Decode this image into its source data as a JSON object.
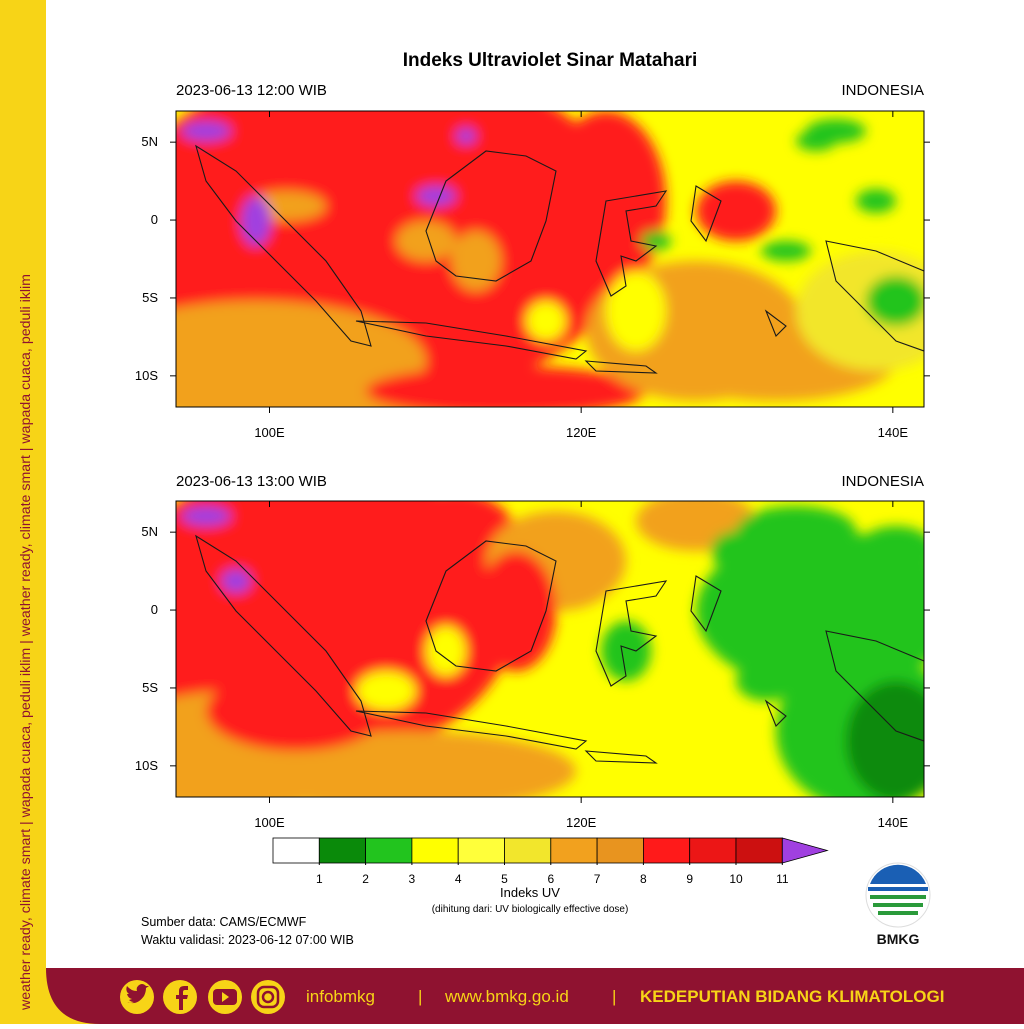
{
  "side_text": "weather ready, climate smart | wapada cuaca, peduli iklim | weather ready, climate smart | wapada cuaca, peduli iklim",
  "title": "Indeks Ultraviolet Sinar Matahari",
  "panels": [
    {
      "time": "2023-06-13 12:00 WIB",
      "region": "INDONESIA"
    },
    {
      "time": "2023-06-13 13:00 WIB",
      "region": "INDONESIA"
    }
  ],
  "map_axes": {
    "xlim": [
      94,
      142
    ],
    "ylim": [
      -12,
      7
    ],
    "xticks": [
      {
        "value": 100,
        "label": "100E"
      },
      {
        "value": 120,
        "label": "120E"
      },
      {
        "value": 140,
        "label": "140E"
      }
    ],
    "yticks": [
      {
        "value": 5,
        "label": "5N"
      },
      0,
      {
        "value": -5,
        "label": "5S"
      },
      {
        "value": -10,
        "label": "10S"
      }
    ]
  },
  "colorbar": {
    "ticks": [
      1,
      2,
      3,
      4,
      5,
      6,
      7,
      8,
      9,
      10,
      11
    ],
    "colors": [
      "#ffffff",
      "#0a8a0a",
      "#22c41e",
      "#ffff00",
      "#ffff3a",
      "#f2e62c",
      "#f2a11e",
      "#e8941f",
      "#ff1a1a",
      "#ec1616",
      "#cc1010",
      "#a040e0"
    ],
    "title": "Indeks UV",
    "subtitle": "(dihitung dari: UV biologically effective dose)"
  },
  "source": [
    "Sumber data: CAMS/ECMWF",
    "Waktu validasi: 2023-06-12 07:00 WIB"
  ],
  "logo": "BMKG",
  "footer": {
    "handle": "infobmkg",
    "separator": "|",
    "website": "www.bmkg.go.id",
    "org": "KEDEPUTIAN BIDANG KLIMATOLOGI"
  }
}
